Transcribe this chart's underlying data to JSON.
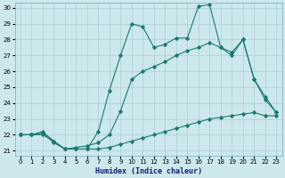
{
  "xlabel": "Humidex (Indice chaleur)",
  "bg_color": "#cce8ec",
  "grid_color": "#aacdd4",
  "line_color": "#1a7a6e",
  "xlim": [
    -0.5,
    23.5
  ],
  "ylim": [
    20.7,
    30.3
  ],
  "xticks": [
    0,
    1,
    2,
    3,
    4,
    5,
    6,
    7,
    8,
    9,
    10,
    11,
    12,
    13,
    14,
    15,
    16,
    17,
    18,
    19,
    20,
    21,
    22,
    23
  ],
  "yticks": [
    21,
    22,
    23,
    24,
    25,
    26,
    27,
    28,
    29,
    30
  ],
  "line1_x": [
    0,
    1,
    2,
    3,
    4,
    5,
    6,
    7,
    8,
    9,
    10,
    11,
    12,
    13,
    14,
    15,
    16,
    17,
    18,
    19,
    20,
    21,
    22,
    23
  ],
  "line1_y": [
    22.0,
    22.0,
    22.2,
    21.6,
    21.1,
    21.1,
    21.1,
    22.2,
    24.8,
    27.0,
    29.0,
    28.8,
    27.5,
    27.7,
    28.1,
    28.1,
    30.1,
    30.2,
    27.5,
    27.0,
    28.0,
    25.5,
    24.2,
    23.4
  ],
  "line2_x": [
    0,
    1,
    2,
    3,
    4,
    5,
    6,
    7,
    8,
    9,
    10,
    11,
    12,
    13,
    14,
    15,
    16,
    17,
    18,
    19,
    20,
    21,
    22,
    23
  ],
  "line2_y": [
    22.0,
    22.0,
    22.1,
    21.5,
    21.1,
    21.2,
    21.3,
    21.5,
    22.0,
    23.5,
    25.5,
    26.0,
    26.3,
    26.6,
    27.0,
    27.3,
    27.5,
    27.8,
    27.5,
    27.2,
    28.0,
    25.5,
    24.4,
    23.4
  ],
  "line3_x": [
    0,
    1,
    2,
    3,
    4,
    5,
    6,
    7,
    8,
    9,
    10,
    11,
    12,
    13,
    14,
    15,
    16,
    17,
    18,
    19,
    20,
    21,
    22,
    23
  ],
  "line3_y": [
    22.0,
    22.0,
    22.0,
    21.6,
    21.1,
    21.1,
    21.1,
    21.1,
    21.2,
    21.4,
    21.6,
    21.8,
    22.0,
    22.2,
    22.4,
    22.6,
    22.8,
    23.0,
    23.1,
    23.2,
    23.3,
    23.4,
    23.2,
    23.2
  ]
}
